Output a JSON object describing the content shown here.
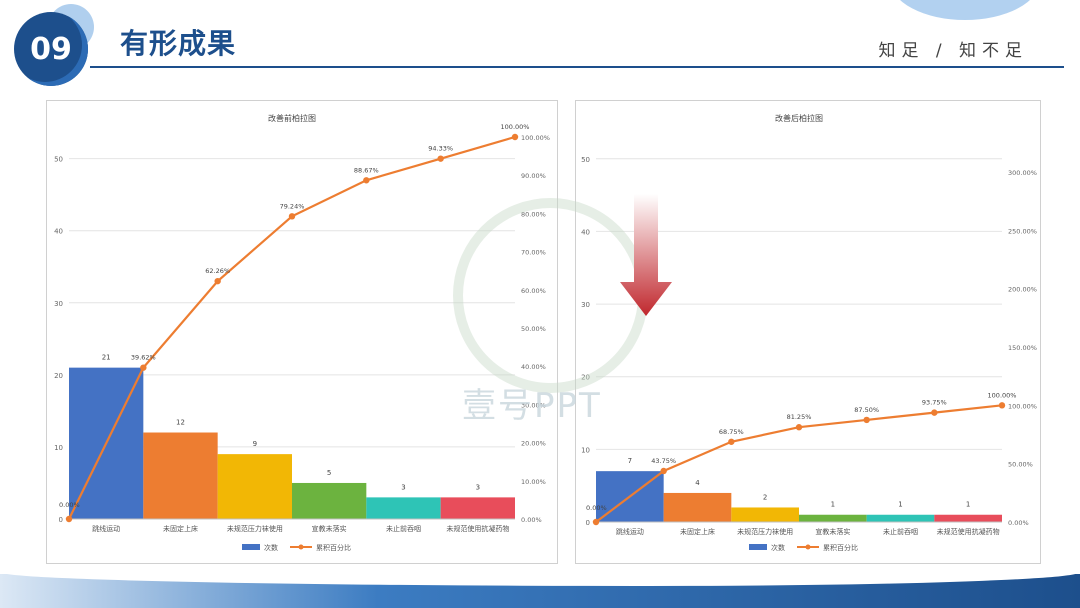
{
  "header": {
    "badge_number": "09",
    "title": "有形成果",
    "slogan": "知足 / 知不足"
  },
  "watermark": {
    "text": "壹号PPT"
  },
  "colors": {
    "series_colors": [
      "#4472c4",
      "#ed7d31",
      "#f2b705",
      "#6cb33f",
      "#2ec4b6",
      "#e84d5b"
    ],
    "line": "#ed7d31",
    "arrow": "#c0272d"
  },
  "chart_data": [
    {
      "type": "bar",
      "title": "改善前柏拉图",
      "categories": [
        "跳线运动",
        "未固定上床",
        "未规范压力袜使用",
        "宣教未落实",
        "未止前吞咽",
        "未规范使用抗凝药物"
      ],
      "series": [
        {
          "name": "次数",
          "type": "bar",
          "values": [
            21,
            12,
            9,
            5,
            3,
            3
          ]
        },
        {
          "name": "累积百分比",
          "type": "line",
          "axis": "right",
          "x": [
            "0",
            "跳线运动",
            "未固定上床",
            "未规范压力袜使用",
            "宣教未落实",
            "未止前吞咽",
            "未规范使用抗凝药物"
          ],
          "values": [
            0.0,
            39.62,
            62.26,
            79.24,
            88.67,
            94.33,
            100.0
          ],
          "point_labels": [
            "0.00%",
            "39.62%",
            "62.26%",
            "79.24%",
            "88.67%",
            "94.33%",
            "100.00%"
          ]
        }
      ],
      "bar_labels": [
        "21",
        "12",
        "9",
        "5",
        "3",
        "3"
      ],
      "y_ticks": [
        "0",
        "10",
        "20",
        "30",
        "40",
        "50"
      ],
      "ylim": [
        0,
        53
      ],
      "y2_ticks": [
        "0.00%",
        "10.00%",
        "20.00%",
        "30.00%",
        "40.00%",
        "50.00%",
        "60.00%",
        "70.00%",
        "80.00%",
        "90.00%",
        "100.00%"
      ],
      "y2lim": [
        0,
        100
      ],
      "legend": [
        "次数",
        "累积百分比"
      ],
      "legend_position": "bottom"
    },
    {
      "type": "bar",
      "title": "改善后柏拉图",
      "categories": [
        "跳线运动",
        "未固定上床",
        "未规范压力袜使用",
        "宣教未落实",
        "未止前吞咽",
        "未规范使用抗凝药物"
      ],
      "series": [
        {
          "name": "次数",
          "type": "bar",
          "values": [
            7,
            4,
            2,
            1,
            1,
            1
          ]
        },
        {
          "name": "累积百分比",
          "type": "line",
          "axis": "right",
          "x": [
            "0",
            "跳线运动",
            "未固定上床",
            "未规范压力袜使用",
            "宣教未落实",
            "未止前吞咽",
            "未规范使用抗凝药物"
          ],
          "values": [
            0.0,
            43.75,
            68.75,
            81.25,
            87.5,
            93.75,
            100.0
          ],
          "point_labels": [
            "0.00%",
            "43.75%",
            "68.75%",
            "81.25%",
            "87.50%",
            "93.75%",
            "100.00%"
          ]
        }
      ],
      "bar_labels": [
        "7",
        "4",
        "2",
        "1",
        "1",
        "1"
      ],
      "y_ticks": [
        "0",
        "10",
        "20",
        "30",
        "40",
        "50"
      ],
      "ylim": [
        0,
        53
      ],
      "y2_ticks": [
        "0.00%",
        "50.00%",
        "100.00%",
        "150.00%",
        "200.00%",
        "250.00%",
        "300.00%"
      ],
      "y2lim": [
        0,
        330
      ],
      "legend": [
        "次数",
        "累积百分比"
      ],
      "legend_position": "bottom"
    }
  ]
}
